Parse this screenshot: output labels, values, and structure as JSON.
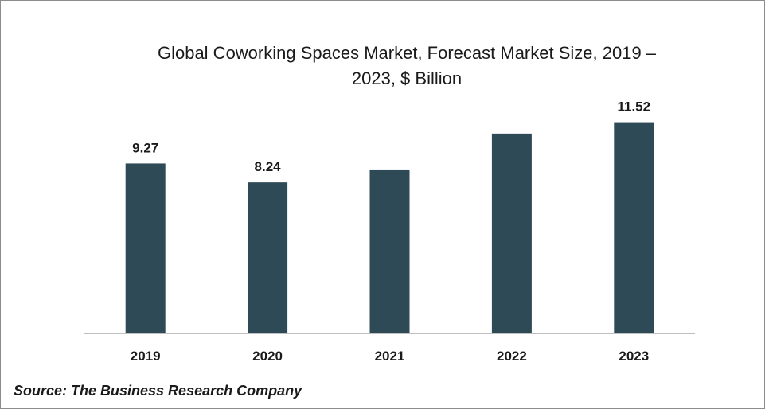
{
  "chart_data": {
    "type": "bar",
    "title_line1": "Global Coworking Spaces Market, Forecast Market Size, 2019 –",
    "title_line2": "2023, $ Billion",
    "categories": [
      "2019",
      "2020",
      "2021",
      "2022",
      "2023"
    ],
    "values": [
      9.27,
      8.24,
      8.9,
      10.9,
      11.52
    ],
    "data_labels": [
      "9.27",
      "8.24",
      "",
      "",
      "11.52"
    ],
    "ylim": [
      0,
      12.5
    ],
    "grid": false,
    "legend": "none",
    "bar_color": "#2e4a56"
  },
  "source": "Source: The Business Research Company"
}
